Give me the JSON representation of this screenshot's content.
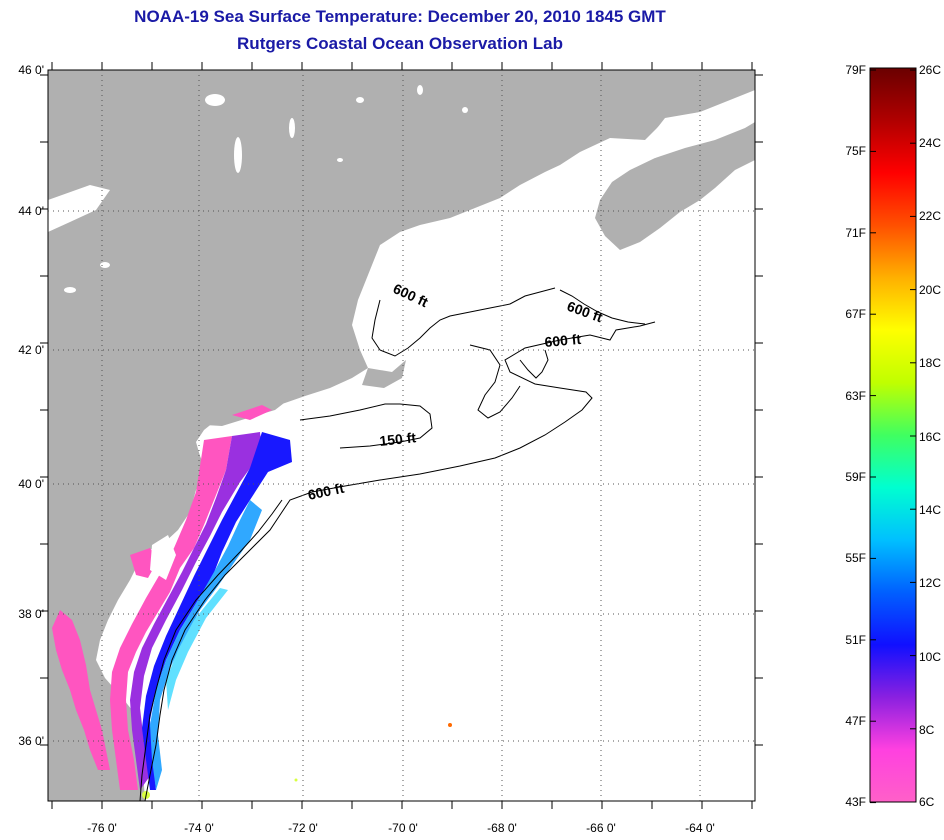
{
  "map": {
    "title": "NOAA-19 Sea Surface Temperature:  December 20, 2010 1845 GMT",
    "subtitle": "Rutgers Coastal Ocean Observation Lab",
    "lat_labels": [
      "46 0'",
      "44 0'",
      "42 0'",
      "40 0'",
      "38 0'",
      "36 0'"
    ],
    "lon_labels": [
      "-76 0'",
      "-74 0'",
      "-72 0'",
      "-70 0'",
      "-68 0'",
      "-66 0'",
      "-64 0'"
    ],
    "isobath_labels": [
      "600 ft",
      "600 ft",
      "600 ft",
      "150 ft",
      "600 ft"
    ],
    "colors": {
      "land": "#b0b0b0",
      "ocean": "#ffffff",
      "title": "#1a1aa6"
    }
  },
  "colorbar": {
    "fahrenheit": [
      "79F",
      "75F",
      "71F",
      "67F",
      "63F",
      "59F",
      "55F",
      "51F",
      "47F",
      "43F"
    ],
    "celsius": [
      "26C",
      "24C",
      "22C",
      "20C",
      "18C",
      "16C",
      "14C",
      "12C",
      "10C",
      "8C",
      "6C"
    ],
    "gradient": [
      "#ff60c8",
      "#ff40e0",
      "#8a20e0",
      "#1010ff",
      "#0060ff",
      "#00c0ff",
      "#00ffd0",
      "#40ff60",
      "#c0ff00",
      "#ffff00",
      "#ffb000",
      "#ff5000",
      "#ff0000",
      "#b00000",
      "#6a0000"
    ]
  }
}
